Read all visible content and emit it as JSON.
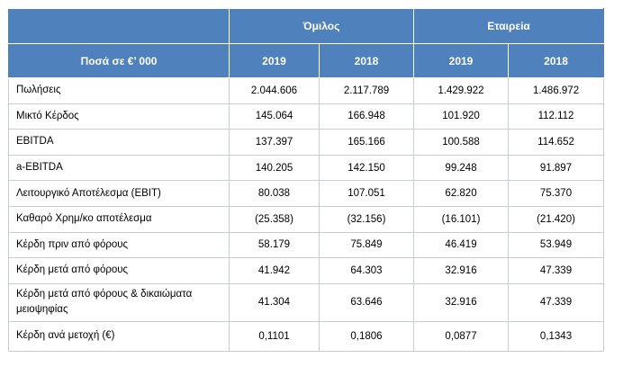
{
  "table": {
    "group_headers": [
      "Όμιλος",
      "Εταιρεία"
    ],
    "amount_header": "Ποσά  σε €’ 000",
    "year_headers": [
      "2019",
      "2018",
      "2019",
      "2018"
    ],
    "rows": [
      {
        "label": "Πωλήσεις",
        "values": [
          "2.044.606",
          "2.117.789",
          "1.429.922",
          "1.486.972"
        ]
      },
      {
        "label": "Μικτό Κέρδος",
        "values": [
          "145.064",
          "166.948",
          "101.920",
          "112.112"
        ]
      },
      {
        "label": "EBITDA",
        "values": [
          "137.397",
          "165.166",
          "100.588",
          "114.652"
        ]
      },
      {
        "label": "a-EBITDA",
        "values": [
          "140.205",
          "142.150",
          "99.248",
          "91.897"
        ]
      },
      {
        "label": "Λειτουργικό Αποτέλεσμα (ΕΒΙΤ)",
        "values": [
          "80.038",
          "107.051",
          "62.820",
          "75.370"
        ]
      },
      {
        "label": "Καθαρό Χρημ/κο αποτέλεσμα",
        "values": [
          "(25.358)",
          "(32.156)",
          "(16.101)",
          "(21.420)"
        ]
      },
      {
        "label": "Κέρδη πριν από φόρους",
        "values": [
          "58.179",
          "75.849",
          "46.419",
          "53.949"
        ]
      },
      {
        "label": "Κέρδη μετά από φόρους",
        "values": [
          "41.942",
          "64.303",
          "32.916",
          "47.339"
        ]
      },
      {
        "label": "Κέρδη μετά από φόρους & δικαιώματα μειοψηφίας",
        "values": [
          "41.304",
          "63.646",
          "32.916",
          "47.339"
        ]
      },
      {
        "label": "Κέρδη ανά μετοχή (€)",
        "values": [
          "0,1101",
          "0,1806",
          "0,0877",
          "0,1343"
        ]
      }
    ]
  },
  "colors": {
    "header_bg": "#4f81bd",
    "header_text": "#ffffff",
    "grid": "#c8cdd3"
  }
}
